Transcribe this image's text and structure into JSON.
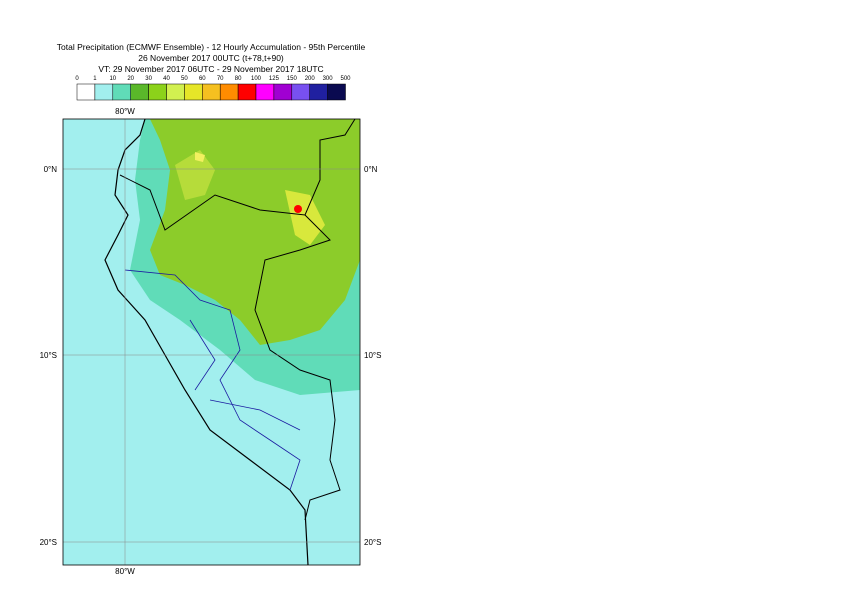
{
  "header": {
    "lines": [
      "Total Precipitation (ECMWF Ensemble) - 12 Hourly Accumulation - 95th Percentile",
      "26 November 2017 00UTC (t+78,t+90)",
      "VT: 29 November 2017 06UTC - 29 November 2017 18UTC"
    ]
  },
  "legend": {
    "labels": [
      "0",
      "1",
      "10",
      "20",
      "30",
      "40",
      "50",
      "60",
      "70",
      "80",
      "100",
      "125",
      "150",
      "200",
      "300",
      "500"
    ]
  },
  "map": {
    "lon_labels": [
      "80°W"
    ],
    "lat_labels": [
      "0°N",
      "10°S",
      "20°S"
    ]
  }
}
